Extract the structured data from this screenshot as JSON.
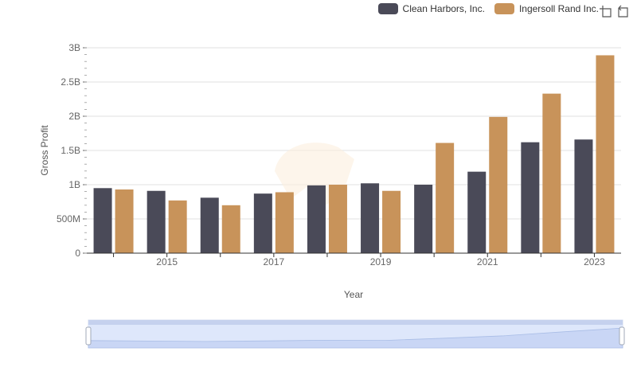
{
  "chart_data": {
    "type": "bar",
    "xlabel": "Year",
    "ylabel": "Gross Profit",
    "categories": [
      "2014",
      "2015",
      "2016",
      "2017",
      "2018",
      "2019",
      "2020",
      "2021",
      "2022",
      "2023"
    ],
    "x_tick_labels": [
      "2015",
      "2017",
      "2019",
      "2021",
      "2023"
    ],
    "y_ticks": [
      0,
      500000000,
      1000000000,
      1500000000,
      2000000000,
      2500000000,
      3000000000
    ],
    "y_tick_labels": [
      "0",
      "500M",
      "1B",
      "1.5B",
      "2B",
      "2.5B",
      "3B"
    ],
    "ylim": [
      0,
      3000000000
    ],
    "grid": true,
    "legend_position": "top-right",
    "series": [
      {
        "name": "Clean Harbors, Inc.",
        "color": "#4a4a58",
        "values": [
          950000000,
          910000000,
          810000000,
          870000000,
          990000000,
          1020000000,
          1000000000,
          1190000000,
          1620000000,
          1660000000
        ]
      },
      {
        "name": "Ingersoll Rand Inc.",
        "color": "#c8935a",
        "values": [
          930000000,
          770000000,
          700000000,
          890000000,
          1000000000,
          910000000,
          1610000000,
          1990000000,
          2330000000,
          2890000000
        ]
      }
    ]
  },
  "toolbox": {
    "zoom_icon": "zoom-icon",
    "restore_icon": "restore-icon"
  }
}
